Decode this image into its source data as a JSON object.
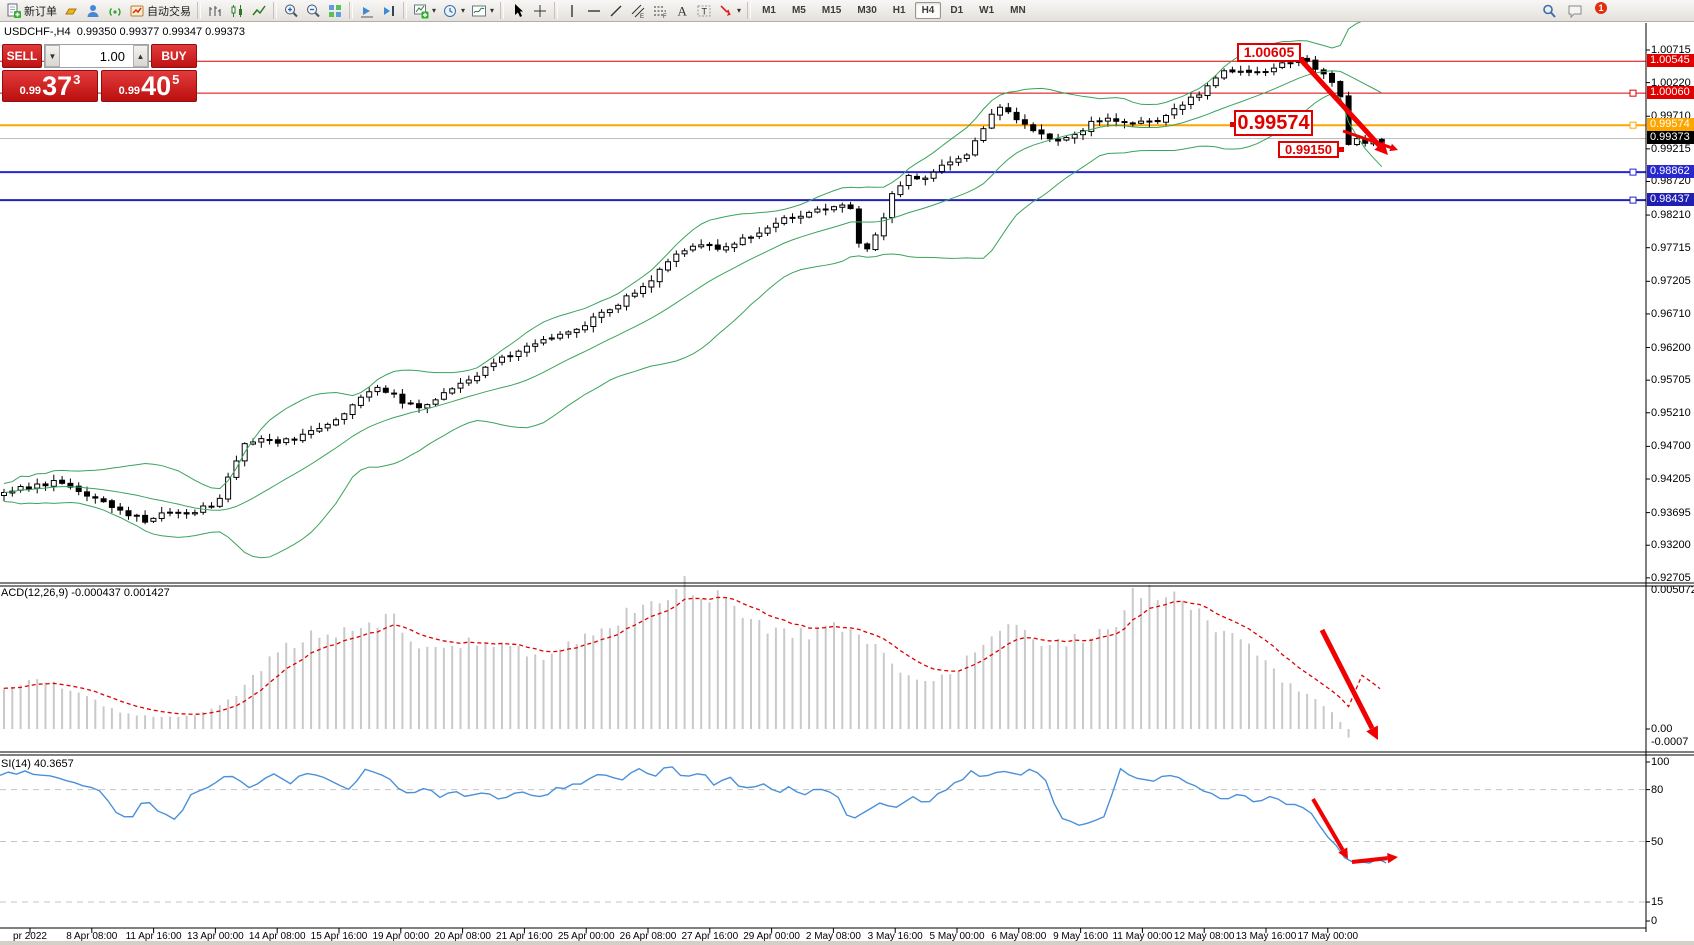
{
  "window": {
    "chart_title": "USDCHF-,H4  0.99350 0.99377 0.99347 0.99373"
  },
  "toolbar": {
    "buttons": [
      {
        "icon": "new-order",
        "label": "新订单"
      },
      {
        "icon": "gold-ingot"
      },
      {
        "icon": "person"
      },
      {
        "icon": "signal"
      },
      {
        "icon": "autotrade",
        "label": "自动交易"
      },
      {
        "sep": true
      },
      {
        "icon": "bar-chart"
      },
      {
        "icon": "candle-chart"
      },
      {
        "icon": "line-chart"
      },
      {
        "sep": true
      },
      {
        "icon": "zoom-in"
      },
      {
        "icon": "zoom-out"
      },
      {
        "icon": "tile-windows"
      },
      {
        "sep": true
      },
      {
        "icon": "auto-scroll"
      },
      {
        "icon": "chart-shift"
      },
      {
        "sep": true
      },
      {
        "icon": "indicators",
        "dropdown": true
      },
      {
        "icon": "periods",
        "dropdown": true
      },
      {
        "icon": "templates",
        "dropdown": true
      },
      {
        "sep": true
      },
      {
        "icon": "cursor"
      },
      {
        "icon": "crosshair"
      },
      {
        "sep": true
      },
      {
        "icon": "vertical-line"
      },
      {
        "icon": "horizontal-line"
      },
      {
        "icon": "trendline"
      },
      {
        "icon": "channel"
      },
      {
        "icon": "fibonacci"
      },
      {
        "icon": "text"
      },
      {
        "icon": "text-label"
      },
      {
        "icon": "arrows",
        "dropdown": true
      },
      {
        "sep": true
      }
    ],
    "timeframes": [
      "M1",
      "M5",
      "M15",
      "M30",
      "H1",
      "H4",
      "D1",
      "W1",
      "MN"
    ],
    "active_timeframe": "H4",
    "chat_badge": "1"
  },
  "trade_panel": {
    "sell_label": "SELL",
    "buy_label": "BUY",
    "volume": "1.00",
    "sell_small": "0.99",
    "sell_big": "37",
    "sell_sup": "3",
    "buy_small": "0.99",
    "buy_big": "40",
    "buy_sup": "5"
  },
  "price_axis": {
    "ticks": [
      "1.00715",
      "1.00220",
      "0.99710",
      "0.99215",
      "0.98720",
      "0.98210",
      "0.97715",
      "0.97205",
      "0.96710",
      "0.96200",
      "0.95705",
      "0.95210",
      "0.94700",
      "0.94205",
      "0.93695",
      "0.93200",
      "0.92705"
    ],
    "badges": [
      {
        "text": "1.00545",
        "color": "#e00000"
      },
      {
        "text": "1.00060",
        "color": "#e00000"
      },
      {
        "text": "0.99574",
        "color": "#ffa500"
      },
      {
        "text": "0.99373",
        "color": "#000000"
      },
      {
        "text": "0.98862",
        "color": "#2828cf"
      },
      {
        "text": "0.98437",
        "color": "#1f1fb4"
      }
    ]
  },
  "levels": [
    {
      "price": 1.00545,
      "color": "#dd0000",
      "w": 1,
      "handle": false
    },
    {
      "price": 1.0006,
      "color": "#dd0000",
      "w": 1,
      "handle": true
    },
    {
      "price": 0.99574,
      "color": "#ffa500",
      "w": 2,
      "handle": true
    },
    {
      "price": 0.99373,
      "color": "#bdbdbd",
      "w": 1,
      "handle": false
    },
    {
      "price": 0.98862,
      "color": "#2626d6",
      "w": 2,
      "handle": true
    },
    {
      "price": 0.98437,
      "color": "#2020bb",
      "w": 2,
      "handle": true
    }
  ],
  "annotations": {
    "labels": [
      {
        "text": "1.00605"
      },
      {
        "text": "0.99574"
      },
      {
        "text": "0.99150"
      }
    ]
  },
  "macd_pane": {
    "label": "ACD(12,26,9) -0.000437 0.001427",
    "axis_max": "0.005072",
    "axis_zero": "0.00",
    "axis_min": "-0.0007"
  },
  "rsi_pane": {
    "label": "SI(14) 40.3657",
    "axis": [
      "100",
      "80",
      "50",
      "15",
      "0"
    ]
  },
  "time_axis": {
    "labels": [
      "pr 2022",
      "8 Apr 08:00",
      "11 Apr 16:00",
      "13 Apr 00:00",
      "14 Apr 08:00",
      "15 Apr 16:00",
      "19 Apr 00:00",
      "20 Apr 08:00",
      "21 Apr 16:00",
      "25 Apr 00:00",
      "26 Apr 08:00",
      "27 Apr 16:00",
      "29 Apr 00:00",
      "2 May 08:00",
      "3 May 16:00",
      "5 May 00:00",
      "6 May 08:00",
      "9 May 16:00",
      "11 May 00:00",
      "12 May 08:00",
      "13 May 16:00",
      "17 May 00:00"
    ]
  },
  "chart_data": {
    "type": "candlestick+indicators",
    "symbol": "USDCHF-",
    "period": "H4",
    "quote": {
      "open": 0.9935,
      "high": 0.99377,
      "low": 0.99347,
      "close": 0.99373
    },
    "price_axis_range": [
      0.92705,
      1.00715
    ],
    "horizontal_levels": [
      1.00545,
      1.0006,
      0.99574,
      0.99373,
      0.98862,
      0.98437
    ],
    "marked_prices": [
      1.00605,
      0.99574,
      0.9915
    ],
    "price_anchors": [
      [
        2,
        0.94
      ],
      [
        28,
        0.9409
      ],
      [
        55,
        0.9415
      ],
      [
        80,
        0.9401
      ],
      [
        100,
        0.9386
      ],
      [
        115,
        0.9375
      ],
      [
        132,
        0.9363
      ],
      [
        150,
        0.9357
      ],
      [
        165,
        0.9371
      ],
      [
        185,
        0.9364
      ],
      [
        205,
        0.9377
      ],
      [
        218,
        0.9389
      ],
      [
        228,
        0.942
      ],
      [
        242,
        0.947
      ],
      [
        260,
        0.9479
      ],
      [
        276,
        0.9475
      ],
      [
        292,
        0.9482
      ],
      [
        310,
        0.949
      ],
      [
        328,
        0.95
      ],
      [
        346,
        0.9519
      ],
      [
        362,
        0.9544
      ],
      [
        376,
        0.9562
      ],
      [
        390,
        0.9551
      ],
      [
        404,
        0.9537
      ],
      [
        417,
        0.9527
      ],
      [
        433,
        0.9539
      ],
      [
        449,
        0.9552
      ],
      [
        465,
        0.9566
      ],
      [
        481,
        0.9581
      ],
      [
        499,
        0.9603
      ],
      [
        517,
        0.9613
      ],
      [
        535,
        0.9624
      ],
      [
        553,
        0.9634
      ],
      [
        571,
        0.9645
      ],
      [
        589,
        0.9659
      ],
      [
        607,
        0.9677
      ],
      [
        625,
        0.9694
      ],
      [
        643,
        0.971
      ],
      [
        659,
        0.9735
      ],
      [
        675,
        0.9757
      ],
      [
        691,
        0.9771
      ],
      [
        705,
        0.978
      ],
      [
        715,
        0.9765
      ],
      [
        729,
        0.9774
      ],
      [
        745,
        0.9785
      ],
      [
        761,
        0.9798
      ],
      [
        777,
        0.9809
      ],
      [
        793,
        0.9819
      ],
      [
        809,
        0.9825
      ],
      [
        825,
        0.9832
      ],
      [
        841,
        0.9839
      ],
      [
        849,
        0.9843
      ],
      [
        856,
        0.9789
      ],
      [
        863,
        0.9766
      ],
      [
        871,
        0.9777
      ],
      [
        881,
        0.9809
      ],
      [
        891,
        0.9848
      ],
      [
        901,
        0.987
      ],
      [
        911,
        0.9882
      ],
      [
        921,
        0.9875
      ],
      [
        931,
        0.9887
      ],
      [
        943,
        0.9895
      ],
      [
        955,
        0.9905
      ],
      [
        967,
        0.9915
      ],
      [
        979,
        0.9938
      ],
      [
        991,
        0.997
      ],
      [
        1001,
        0.9984
      ],
      [
        1011,
        0.9975
      ],
      [
        1023,
        0.9962
      ],
      [
        1035,
        0.995
      ],
      [
        1047,
        0.9936
      ],
      [
        1057,
        0.993
      ],
      [
        1069,
        0.9943
      ],
      [
        1081,
        0.995
      ],
      [
        1093,
        0.9961
      ],
      [
        1105,
        0.9971
      ],
      [
        1117,
        0.9965
      ],
      [
        1129,
        0.9957
      ],
      [
        1141,
        0.9967
      ],
      [
        1153,
        0.9959
      ],
      [
        1165,
        0.9971
      ],
      [
        1177,
        0.9983
      ],
      [
        1189,
        0.9995
      ],
      [
        1201,
        1.0007
      ],
      [
        1213,
        1.0027
      ],
      [
        1225,
        1.0043
      ],
      [
        1237,
        1.0035
      ],
      [
        1249,
        1.0041
      ],
      [
        1261,
        1.0035
      ],
      [
        1273,
        1.0045
      ],
      [
        1285,
        1.0051
      ],
      [
        1297,
        1.0057
      ],
      [
        1307,
        1.0055
      ],
      [
        1317,
        1.004
      ],
      [
        1327,
        1.003
      ],
      [
        1337,
        1.0021
      ],
      [
        1343,
        0.999
      ],
      [
        1349,
        0.992
      ],
      [
        1356,
        0.9934
      ],
      [
        1364,
        0.9928
      ],
      [
        1372,
        0.994
      ],
      [
        1380,
        0.9931
      ],
      [
        1388,
        0.9937
      ]
    ],
    "macd": {
      "main_value": -0.000437,
      "signal_value": 0.001427,
      "axis_max": 0.005072,
      "axis_min": -0.0007,
      "hist_anchors": [
        [
          2,
          0.0015
        ],
        [
          40,
          0.0018
        ],
        [
          80,
          0.0012
        ],
        [
          120,
          0.0006
        ],
        [
          160,
          0.0004
        ],
        [
          200,
          0.0005
        ],
        [
          240,
          0.0013
        ],
        [
          280,
          0.0028
        ],
        [
          320,
          0.0034
        ],
        [
          360,
          0.0035
        ],
        [
          390,
          0.004
        ],
        [
          420,
          0.003
        ],
        [
          450,
          0.0028
        ],
        [
          480,
          0.0032
        ],
        [
          510,
          0.003
        ],
        [
          540,
          0.0026
        ],
        [
          570,
          0.003
        ],
        [
          600,
          0.0034
        ],
        [
          630,
          0.0042
        ],
        [
          660,
          0.0048
        ],
        [
          690,
          0.0051
        ],
        [
          720,
          0.0046
        ],
        [
          750,
          0.0038
        ],
        [
          780,
          0.0034
        ],
        [
          810,
          0.0034
        ],
        [
          840,
          0.0036
        ],
        [
          870,
          0.003
        ],
        [
          900,
          0.002
        ],
        [
          930,
          0.0016
        ],
        [
          960,
          0.0022
        ],
        [
          990,
          0.0034
        ],
        [
          1020,
          0.0036
        ],
        [
          1050,
          0.003
        ],
        [
          1080,
          0.0032
        ],
        [
          1110,
          0.0036
        ],
        [
          1140,
          0.005
        ],
        [
          1165,
          0.0048
        ],
        [
          1190,
          0.0042
        ],
        [
          1220,
          0.0036
        ],
        [
          1250,
          0.0028
        ],
        [
          1280,
          0.0018
        ],
        [
          1310,
          0.0011
        ],
        [
          1330,
          0.0007
        ],
        [
          1342,
          0.0002
        ],
        [
          1350,
          -0.0004
        ]
      ]
    },
    "rsi": {
      "current": 40.3657,
      "anchors": [
        [
          0,
          88
        ],
        [
          25,
          91
        ],
        [
          50,
          87
        ],
        [
          75,
          83
        ],
        [
          100,
          80
        ],
        [
          115,
          66
        ],
        [
          130,
          62
        ],
        [
          145,
          74
        ],
        [
          160,
          66
        ],
        [
          175,
          62
        ],
        [
          190,
          76
        ],
        [
          210,
          83
        ],
        [
          230,
          88
        ],
        [
          250,
          81
        ],
        [
          270,
          89
        ],
        [
          290,
          84
        ],
        [
          310,
          91
        ],
        [
          330,
          86
        ],
        [
          350,
          80
        ],
        [
          365,
          93
        ],
        [
          380,
          89
        ],
        [
          395,
          83
        ],
        [
          410,
          78
        ],
        [
          425,
          82
        ],
        [
          440,
          76
        ],
        [
          455,
          80
        ],
        [
          470,
          75
        ],
        [
          485,
          79
        ],
        [
          500,
          75
        ],
        [
          520,
          80
        ],
        [
          540,
          76
        ],
        [
          560,
          81
        ],
        [
          580,
          84
        ],
        [
          600,
          90
        ],
        [
          620,
          86
        ],
        [
          640,
          92
        ],
        [
          655,
          88
        ],
        [
          670,
          94
        ],
        [
          685,
          87
        ],
        [
          700,
          91
        ],
        [
          715,
          83
        ],
        [
          730,
          86
        ],
        [
          745,
          80
        ],
        [
          760,
          84
        ],
        [
          775,
          78
        ],
        [
          790,
          82
        ],
        [
          805,
          77
        ],
        [
          820,
          81
        ],
        [
          835,
          79
        ],
        [
          850,
          60
        ],
        [
          865,
          68
        ],
        [
          880,
          73
        ],
        [
          895,
          70
        ],
        [
          910,
          76
        ],
        [
          925,
          72
        ],
        [
          940,
          78
        ],
        [
          955,
          83
        ],
        [
          970,
          90
        ],
        [
          985,
          86
        ],
        [
          1000,
          92
        ],
        [
          1015,
          88
        ],
        [
          1030,
          91
        ],
        [
          1045,
          87
        ],
        [
          1060,
          63
        ],
        [
          1075,
          61
        ],
        [
          1090,
          59
        ],
        [
          1105,
          66
        ],
        [
          1120,
          92
        ],
        [
          1135,
          88
        ],
        [
          1150,
          85
        ],
        [
          1165,
          89
        ],
        [
          1180,
          86
        ],
        [
          1195,
          82
        ],
        [
          1210,
          78
        ],
        [
          1225,
          74
        ],
        [
          1240,
          78
        ],
        [
          1255,
          73
        ],
        [
          1270,
          76
        ],
        [
          1285,
          71
        ],
        [
          1295,
          72
        ],
        [
          1310,
          67
        ],
        [
          1325,
          56
        ],
        [
          1335,
          48
        ],
        [
          1348,
          39
        ],
        [
          1360,
          38
        ],
        [
          1375,
          39
        ],
        [
          1392,
          38
        ]
      ]
    }
  }
}
